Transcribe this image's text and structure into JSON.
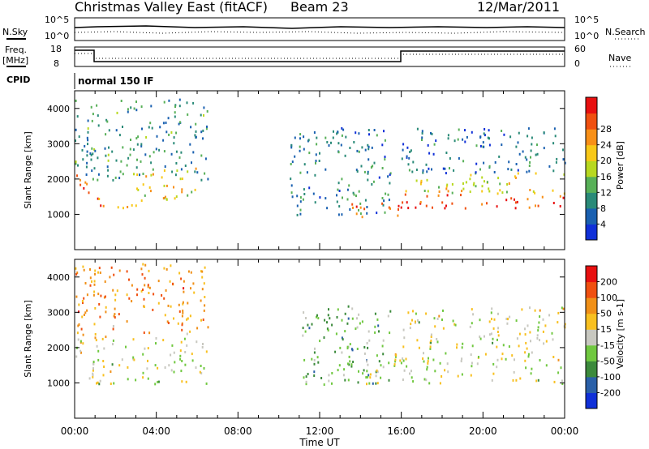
{
  "header": {
    "site": "Christmas Valley East (fitACF)",
    "beam": "Beam 23",
    "date": "12/Mar/2011"
  },
  "labels": {
    "nsky": "N.Sky",
    "nsearch": "N.Search",
    "freq": "Freq.",
    "freq_unit": "[MHz]",
    "nave": "Nave",
    "cpid": "CPID",
    "cpid_value": "normal 150 IF",
    "noise_ticks": [
      "10^5",
      "10^0"
    ],
    "freq_ticks": [
      "18",
      "8"
    ],
    "nave_ticks": [
      "60",
      "0"
    ]
  },
  "chart_data": [
    {
      "type": "heatmap",
      "name": "Power",
      "ylabel": "Slant Range [km]",
      "xlabel": "",
      "x_range_hours": [
        0,
        24
      ],
      "ylim": [
        0,
        4500
      ],
      "yticks": [
        1000,
        2000,
        3000,
        4000
      ],
      "colorbar_label": "Power [dB]",
      "colorbar_ticks": [
        "4",
        "8",
        "12",
        "16",
        "20",
        "24",
        "28"
      ],
      "colors": [
        "#1030d8",
        "#1a60b0",
        "#2a8a78",
        "#58b058",
        "#b8d820",
        "#f8c818",
        "#f89018",
        "#f05010",
        "#e81010"
      ],
      "bands": [
        {
          "t": [
            0.0,
            1.0
          ],
          "range": [
            1600,
            2200
          ],
          "level": 0.85
        },
        {
          "t": [
            1.0,
            3.0
          ],
          "range": [
            1100,
            1500
          ],
          "level": 0.75
        },
        {
          "t": [
            3.0,
            6.0
          ],
          "range": [
            1400,
            2400
          ],
          "level": 0.6
        },
        {
          "t": [
            0.0,
            6.5
          ],
          "range": [
            2000,
            4300
          ],
          "level": 0.3
        },
        {
          "t": [
            10.5,
            15.5
          ],
          "range": [
            1000,
            3500
          ],
          "level": 0.25
        },
        {
          "t": [
            13.5,
            16.0
          ],
          "range": [
            900,
            1400
          ],
          "level": 0.85
        },
        {
          "t": [
            16.0,
            24.0
          ],
          "range": [
            1200,
            1600
          ],
          "level": 0.9
        },
        {
          "t": [
            16.0,
            24.0
          ],
          "range": [
            1600,
            2200
          ],
          "level": 0.55
        },
        {
          "t": [
            16.0,
            24.0
          ],
          "range": [
            2200,
            3500
          ],
          "level": 0.2
        }
      ]
    },
    {
      "type": "heatmap",
      "name": "Velocity",
      "ylabel": "Slant Range [km]",
      "xlabel": "Time UT",
      "x_range_hours": [
        0,
        24
      ],
      "xticks": [
        "00:00",
        "04:00",
        "08:00",
        "12:00",
        "16:00",
        "20:00",
        "00:00"
      ],
      "ylim": [
        0,
        4500
      ],
      "yticks": [
        1000,
        2000,
        3000,
        4000
      ],
      "colorbar_label": "Velocity [m s-1]",
      "colorbar_ticks": [
        "200",
        "100",
        "50",
        "15",
        "-15",
        "-50",
        "-100",
        "-200"
      ],
      "colors": [
        "#1030d8",
        "#2a60a8",
        "#3c8a3c",
        "#70c840",
        "#c8c8c0",
        "#f8c020",
        "#f09018",
        "#f05010",
        "#e81010"
      ],
      "bands": [
        {
          "t": [
            0.0,
            6.5
          ],
          "range": [
            1000,
            2300
          ],
          "level": 0.5
        },
        {
          "t": [
            0.0,
            6.5
          ],
          "range": [
            2300,
            4400
          ],
          "level": 0.72
        },
        {
          "t": [
            11.0,
            15.5
          ],
          "range": [
            900,
            3200
          ],
          "level": 0.35
        },
        {
          "t": [
            14.0,
            24.0
          ],
          "range": [
            1000,
            1900
          ],
          "level": 0.5
        },
        {
          "t": [
            16.0,
            24.0
          ],
          "range": [
            2000,
            3200
          ],
          "level": 0.5
        }
      ]
    }
  ]
}
